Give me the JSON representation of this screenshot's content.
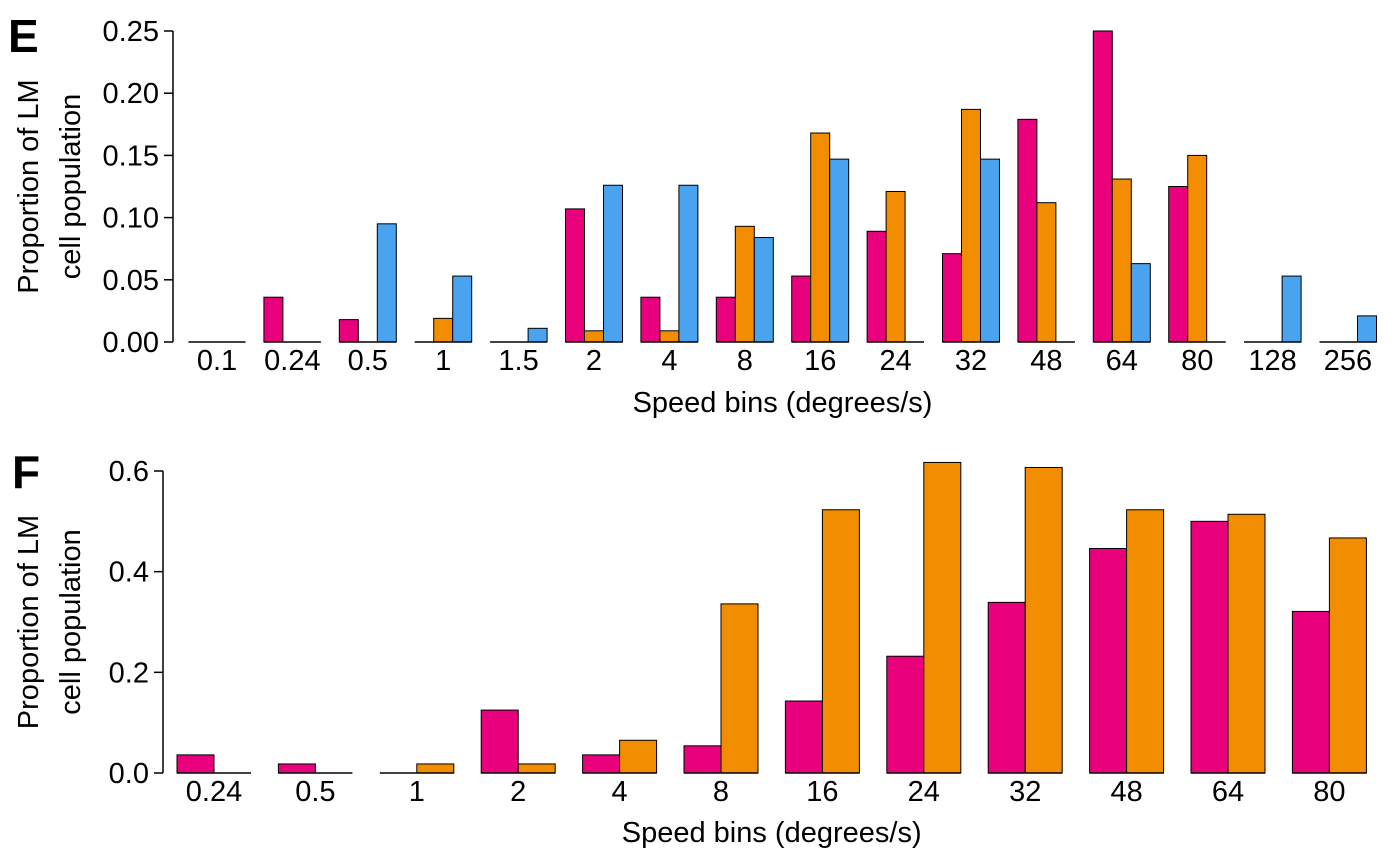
{
  "colors": {
    "series1": "#E8007D",
    "series2": "#F28C00",
    "series3": "#4AA3EE"
  },
  "chart_data": [
    {
      "panel": "E",
      "type": "bar",
      "xlabel": "Speed bins (degrees/s)",
      "ylabel": [
        "Proportion of LM",
        "cell population"
      ],
      "ylim": [
        0,
        0.25
      ],
      "yticks": [
        "0.00",
        "0.05",
        "0.10",
        "0.15",
        "0.20",
        "0.25"
      ],
      "ytick_values": [
        0,
        0.05,
        0.1,
        0.15,
        0.2,
        0.25
      ],
      "categories": [
        "0.1",
        "0.24",
        "0.5",
        "1",
        "1.5",
        "2",
        "4",
        "8",
        "16",
        "24",
        "32",
        "48",
        "64",
        "80",
        "128",
        "256"
      ],
      "series": [
        {
          "color_key": "series1",
          "values": [
            0,
            0.036,
            0.018,
            0,
            0,
            0.107,
            0.036,
            0.036,
            0.053,
            0.089,
            0.071,
            0.179,
            0.25,
            0.125,
            0,
            0
          ]
        },
        {
          "color_key": "series2",
          "values": [
            0,
            0,
            0,
            0.019,
            0,
            0.009,
            0.009,
            0.093,
            0.168,
            0.121,
            0.187,
            0.112,
            0.131,
            0.15,
            0,
            0
          ]
        },
        {
          "color_key": "series3",
          "values": [
            0,
            0,
            0.095,
            0.053,
            0.011,
            0.126,
            0.126,
            0.084,
            0.147,
            0,
            0.147,
            0,
            0.063,
            0,
            0.053,
            0.021
          ]
        }
      ]
    },
    {
      "panel": "F",
      "type": "bar",
      "xlabel": "Speed bins (degrees/s)",
      "ylabel": [
        "Proportion of LM",
        "cell population"
      ],
      "ylim": [
        0,
        0.6
      ],
      "yticks": [
        "0.0",
        "0.2",
        "0.4",
        "0.6"
      ],
      "ytick_values": [
        0,
        0.2,
        0.4,
        0.6
      ],
      "categories": [
        "0.24",
        "0.5",
        "1",
        "2",
        "4",
        "8",
        "16",
        "24",
        "32",
        "48",
        "64",
        "80"
      ],
      "series": [
        {
          "color_key": "series1",
          "values": [
            0.036,
            0.018,
            0,
            0.125,
            0.036,
            0.054,
            0.143,
            0.232,
            0.339,
            0.446,
            0.5,
            0.321
          ]
        },
        {
          "color_key": "series2",
          "values": [
            0,
            0,
            0.018,
            0.018,
            0.065,
            0.336,
            0.523,
            0.617,
            0.607,
            0.523,
            0.514,
            0.467
          ]
        }
      ]
    }
  ]
}
